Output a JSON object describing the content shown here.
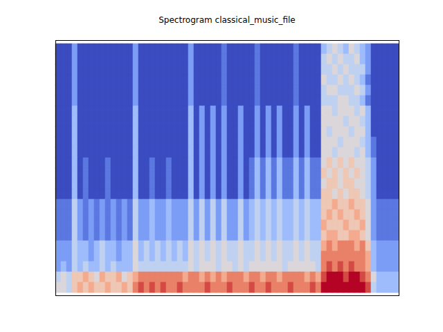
{
  "chart_data": {
    "type": "heatmap",
    "title": "Spectrogram classical_music_file",
    "tick_labels": false,
    "zlim": [
      0,
      10
    ],
    "cells": [
      [
        0,
        0,
        0,
        2,
        0,
        0,
        0,
        0,
        0,
        0,
        0,
        0,
        0,
        0,
        2,
        0,
        0,
        0,
        0,
        0,
        0,
        0,
        0,
        0,
        2,
        0,
        0,
        0,
        0,
        0,
        1,
        0,
        0,
        0,
        0,
        0,
        1,
        0,
        0,
        0,
        0,
        0,
        0,
        1,
        0,
        0,
        0,
        0,
        3,
        4,
        5,
        4,
        3,
        5,
        4,
        3,
        2,
        0,
        0,
        0,
        0,
        0
      ],
      [
        0,
        0,
        0,
        2,
        0,
        0,
        0,
        0,
        0,
        0,
        0,
        0,
        0,
        0,
        2,
        0,
        0,
        0,
        0,
        0,
        0,
        0,
        0,
        0,
        2,
        0,
        0,
        0,
        0,
        0,
        1,
        0,
        0,
        0,
        0,
        0,
        1,
        0,
        0,
        0,
        0,
        0,
        0,
        1,
        0,
        0,
        0,
        0,
        4,
        5,
        4,
        5,
        4,
        4,
        5,
        3,
        2,
        0,
        0,
        0,
        0,
        0
      ],
      [
        0,
        0,
        0,
        2,
        0,
        0,
        0,
        0,
        0,
        0,
        0,
        0,
        0,
        0,
        2,
        0,
        0,
        0,
        0,
        0,
        0,
        0,
        0,
        0,
        2,
        0,
        0,
        0,
        0,
        0,
        1,
        0,
        0,
        0,
        0,
        0,
        1,
        0,
        0,
        0,
        0,
        0,
        0,
        1,
        0,
        0,
        0,
        0,
        4,
        4,
        5,
        4,
        5,
        4,
        4,
        4,
        2,
        0,
        0,
        0,
        0,
        0
      ],
      [
        0,
        0,
        0,
        2,
        0,
        0,
        0,
        0,
        0,
        0,
        0,
        0,
        0,
        0,
        2,
        0,
        0,
        0,
        0,
        0,
        0,
        0,
        0,
        0,
        2,
        0,
        0,
        0,
        0,
        0,
        1,
        0,
        0,
        0,
        0,
        0,
        1,
        0,
        0,
        0,
        0,
        0,
        0,
        1,
        0,
        0,
        0,
        0,
        5,
        4,
        4,
        5,
        4,
        5,
        4,
        3,
        1,
        0,
        0,
        0,
        0,
        0
      ],
      [
        0,
        0,
        0,
        2,
        0,
        0,
        0,
        0,
        0,
        0,
        0,
        0,
        0,
        0,
        2,
        0,
        0,
        0,
        0,
        0,
        0,
        0,
        0,
        0,
        2,
        0,
        0,
        0,
        0,
        0,
        1,
        0,
        0,
        0,
        0,
        0,
        1,
        0,
        0,
        0,
        0,
        0,
        0,
        1,
        0,
        0,
        0,
        0,
        4,
        5,
        5,
        4,
        4,
        4,
        5,
        4,
        2,
        0,
        0,
        0,
        0,
        0
      ],
      [
        0,
        0,
        0,
        2,
        0,
        0,
        0,
        0,
        0,
        0,
        0,
        0,
        0,
        0,
        2,
        0,
        0,
        0,
        0,
        0,
        0,
        0,
        0,
        0,
        2,
        0,
        0,
        0,
        0,
        0,
        1,
        0,
        0,
        0,
        0,
        0,
        1,
        0,
        0,
        0,
        0,
        0,
        0,
        1,
        0,
        0,
        0,
        0,
        4,
        4,
        4,
        5,
        5,
        4,
        4,
        3,
        1,
        0,
        0,
        0,
        0,
        0
      ],
      [
        0,
        0,
        0,
        3,
        0,
        0,
        0,
        0,
        0,
        0,
        0,
        0,
        0,
        0,
        3,
        0,
        0,
        0,
        0,
        0,
        0,
        0,
        0,
        0,
        3,
        0,
        2,
        0,
        2,
        0,
        2,
        0,
        0,
        2,
        0,
        0,
        2,
        0,
        2,
        0,
        2,
        0,
        0,
        2,
        0,
        2,
        0,
        0,
        5,
        5,
        4,
        5,
        5,
        5,
        4,
        5,
        3,
        0,
        0,
        0,
        0,
        0
      ],
      [
        0,
        0,
        0,
        3,
        0,
        0,
        0,
        0,
        0,
        0,
        0,
        0,
        0,
        0,
        3,
        0,
        0,
        0,
        0,
        0,
        0,
        0,
        0,
        0,
        3,
        0,
        2,
        0,
        2,
        0,
        2,
        0,
        0,
        2,
        0,
        0,
        2,
        0,
        2,
        0,
        2,
        0,
        0,
        2,
        0,
        2,
        0,
        0,
        5,
        5,
        5,
        5,
        4,
        5,
        5,
        4,
        3,
        0,
        0,
        0,
        0,
        0
      ],
      [
        0,
        0,
        0,
        3,
        0,
        0,
        0,
        0,
        0,
        0,
        0,
        0,
        0,
        0,
        3,
        0,
        0,
        0,
        0,
        0,
        0,
        0,
        0,
        0,
        3,
        0,
        2,
        0,
        2,
        0,
        2,
        0,
        0,
        2,
        0,
        0,
        2,
        0,
        2,
        0,
        2,
        0,
        0,
        2,
        0,
        2,
        0,
        0,
        5,
        4,
        5,
        5,
        5,
        4,
        5,
        5,
        3,
        0,
        0,
        0,
        0,
        0
      ],
      [
        0,
        0,
        0,
        3,
        0,
        0,
        0,
        0,
        0,
        0,
        0,
        0,
        0,
        0,
        3,
        0,
        0,
        0,
        0,
        0,
        0,
        0,
        0,
        0,
        3,
        0,
        2,
        0,
        2,
        0,
        2,
        0,
        0,
        2,
        0,
        0,
        2,
        0,
        2,
        0,
        2,
        0,
        0,
        2,
        0,
        2,
        0,
        0,
        5,
        5,
        5,
        4,
        5,
        5,
        5,
        4,
        3,
        1,
        0,
        0,
        0,
        0
      ],
      [
        0,
        0,
        0,
        3,
        0,
        0,
        0,
        0,
        0,
        0,
        0,
        0,
        0,
        0,
        3,
        0,
        0,
        0,
        0,
        0,
        0,
        0,
        0,
        0,
        3,
        0,
        2,
        0,
        2,
        0,
        2,
        0,
        0,
        2,
        0,
        0,
        2,
        0,
        2,
        0,
        2,
        0,
        0,
        2,
        0,
        2,
        0,
        0,
        5,
        5,
        4,
        5,
        5,
        5,
        4,
        5,
        3,
        1,
        0,
        0,
        0,
        0
      ],
      [
        0,
        0,
        0,
        3,
        0,
        1,
        0,
        0,
        0,
        1,
        0,
        0,
        0,
        0,
        3,
        0,
        0,
        1,
        0,
        0,
        1,
        0,
        0,
        0,
        3,
        0,
        2,
        0,
        2,
        0,
        2,
        0,
        0,
        2,
        0,
        1,
        3,
        1,
        3,
        1,
        3,
        1,
        1,
        3,
        1,
        3,
        1,
        1,
        5,
        6,
        5,
        6,
        5,
        6,
        5,
        5,
        4,
        2,
        0,
        0,
        0,
        0
      ],
      [
        0,
        0,
        0,
        3,
        0,
        1,
        0,
        0,
        0,
        1,
        0,
        0,
        0,
        0,
        3,
        0,
        0,
        1,
        0,
        0,
        1,
        0,
        0,
        0,
        3,
        0,
        2,
        0,
        2,
        0,
        2,
        0,
        0,
        2,
        0,
        1,
        3,
        1,
        3,
        1,
        3,
        1,
        1,
        3,
        1,
        3,
        1,
        1,
        6,
        5,
        6,
        5,
        6,
        5,
        6,
        5,
        4,
        2,
        0,
        0,
        0,
        0
      ],
      [
        0,
        0,
        0,
        3,
        0,
        1,
        0,
        0,
        0,
        1,
        0,
        0,
        0,
        0,
        3,
        0,
        0,
        1,
        0,
        0,
        1,
        0,
        0,
        0,
        3,
        0,
        2,
        0,
        2,
        0,
        2,
        0,
        0,
        2,
        0,
        1,
        3,
        1,
        3,
        1,
        3,
        1,
        1,
        3,
        1,
        3,
        1,
        1,
        5,
        6,
        6,
        5,
        6,
        6,
        5,
        5,
        4,
        2,
        0,
        0,
        0,
        0
      ],
      [
        0,
        0,
        0,
        3,
        0,
        1,
        0,
        0,
        0,
        1,
        0,
        0,
        0,
        0,
        3,
        0,
        0,
        1,
        0,
        0,
        1,
        0,
        0,
        0,
        3,
        0,
        2,
        0,
        2,
        0,
        2,
        0,
        0,
        2,
        0,
        1,
        3,
        1,
        3,
        1,
        3,
        1,
        1,
        3,
        1,
        3,
        1,
        1,
        6,
        6,
        5,
        6,
        5,
        6,
        6,
        5,
        4,
        2,
        0,
        0,
        0,
        0
      ],
      [
        1,
        1,
        1,
        4,
        2,
        1,
        2,
        1,
        2,
        1,
        2,
        1,
        2,
        1,
        4,
        2,
        2,
        3,
        2,
        2,
        3,
        2,
        2,
        2,
        4,
        2,
        4,
        2,
        4,
        2,
        4,
        2,
        2,
        4,
        2,
        3,
        4,
        3,
        4,
        3,
        4,
        3,
        3,
        4,
        3,
        4,
        3,
        3,
        6,
        6,
        7,
        6,
        6,
        7,
        6,
        6,
        5,
        2,
        1,
        1,
        1,
        1
      ],
      [
        1,
        1,
        1,
        4,
        2,
        1,
        2,
        1,
        2,
        1,
        2,
        1,
        2,
        1,
        4,
        2,
        2,
        3,
        2,
        2,
        3,
        2,
        2,
        2,
        4,
        2,
        4,
        2,
        4,
        2,
        4,
        2,
        2,
        4,
        2,
        3,
        4,
        3,
        4,
        3,
        4,
        3,
        3,
        4,
        3,
        4,
        3,
        3,
        6,
        7,
        6,
        7,
        6,
        6,
        7,
        6,
        5,
        2,
        1,
        1,
        1,
        1
      ],
      [
        1,
        1,
        1,
        4,
        2,
        1,
        2,
        1,
        2,
        1,
        2,
        1,
        2,
        1,
        4,
        2,
        2,
        3,
        2,
        2,
        3,
        2,
        2,
        2,
        4,
        2,
        4,
        2,
        4,
        2,
        4,
        2,
        2,
        4,
        2,
        3,
        4,
        3,
        4,
        3,
        4,
        3,
        3,
        4,
        3,
        4,
        3,
        3,
        7,
        6,
        6,
        6,
        7,
        6,
        6,
        7,
        5,
        2,
        1,
        1,
        1,
        1
      ],
      [
        1,
        1,
        1,
        4,
        2,
        1,
        2,
        1,
        2,
        1,
        2,
        1,
        2,
        1,
        4,
        2,
        2,
        3,
        2,
        2,
        3,
        2,
        2,
        2,
        4,
        2,
        4,
        2,
        4,
        2,
        4,
        2,
        2,
        4,
        2,
        3,
        4,
        3,
        4,
        3,
        4,
        3,
        3,
        4,
        3,
        4,
        3,
        3,
        6,
        7,
        7,
        6,
        6,
        7,
        7,
        6,
        5,
        2,
        1,
        1,
        1,
        1
      ],
      [
        2,
        2,
        2,
        4,
        3,
        3,
        2,
        3,
        4,
        3,
        3,
        2,
        3,
        3,
        5,
        3,
        4,
        3,
        4,
        3,
        4,
        3,
        4,
        3,
        5,
        4,
        5,
        4,
        5,
        4,
        5,
        4,
        4,
        5,
        4,
        4,
        5,
        4,
        5,
        4,
        5,
        4,
        4,
        5,
        4,
        5,
        4,
        4,
        7,
        8,
        7,
        8,
        8,
        8,
        7,
        8,
        6,
        3,
        2,
        2,
        2,
        2
      ],
      [
        2,
        2,
        2,
        4,
        3,
        3,
        2,
        3,
        4,
        3,
        3,
        2,
        3,
        3,
        5,
        3,
        4,
        3,
        4,
        3,
        4,
        3,
        4,
        3,
        5,
        4,
        5,
        4,
        5,
        4,
        5,
        4,
        4,
        5,
        4,
        4,
        5,
        4,
        5,
        4,
        5,
        4,
        4,
        5,
        4,
        5,
        4,
        4,
        8,
        8,
        8,
        8,
        8,
        8,
        8,
        8,
        7,
        3,
        2,
        2,
        2,
        2
      ],
      [
        2,
        3,
        2,
        4,
        3,
        4,
        3,
        3,
        4,
        3,
        4,
        3,
        3,
        3,
        5,
        4,
        4,
        4,
        4,
        4,
        4,
        4,
        4,
        4,
        5,
        4,
        5,
        5,
        5,
        4,
        5,
        5,
        4,
        5,
        4,
        5,
        5,
        5,
        5,
        5,
        5,
        4,
        5,
        5,
        5,
        5,
        5,
        4,
        8,
        9,
        8,
        9,
        8,
        9,
        8,
        8,
        7,
        3,
        2,
        2,
        2,
        2
      ],
      [
        4,
        5,
        4,
        6,
        6,
        7,
        6,
        5,
        7,
        6,
        6,
        7,
        5,
        6,
        7,
        8,
        8,
        8,
        8,
        8,
        8,
        8,
        8,
        7,
        8,
        8,
        7,
        8,
        7,
        8,
        7,
        8,
        8,
        8,
        7,
        8,
        8,
        7,
        8,
        8,
        7,
        8,
        8,
        8,
        8,
        7,
        8,
        7,
        9,
        10,
        10,
        10,
        9,
        10,
        10,
        9,
        8,
        5,
        3,
        3,
        3,
        3
      ],
      [
        5,
        5,
        4,
        6,
        7,
        6,
        7,
        6,
        6,
        7,
        6,
        6,
        7,
        6,
        8,
        9,
        8,
        9,
        8,
        9,
        8,
        8,
        9,
        8,
        8,
        8,
        8,
        9,
        8,
        8,
        8,
        9,
        8,
        8,
        8,
        9,
        8,
        8,
        9,
        8,
        8,
        8,
        9,
        8,
        8,
        8,
        9,
        8,
        10,
        10,
        10,
        10,
        10,
        10,
        10,
        10,
        9,
        4,
        3,
        3,
        3,
        3
      ]
    ]
  }
}
